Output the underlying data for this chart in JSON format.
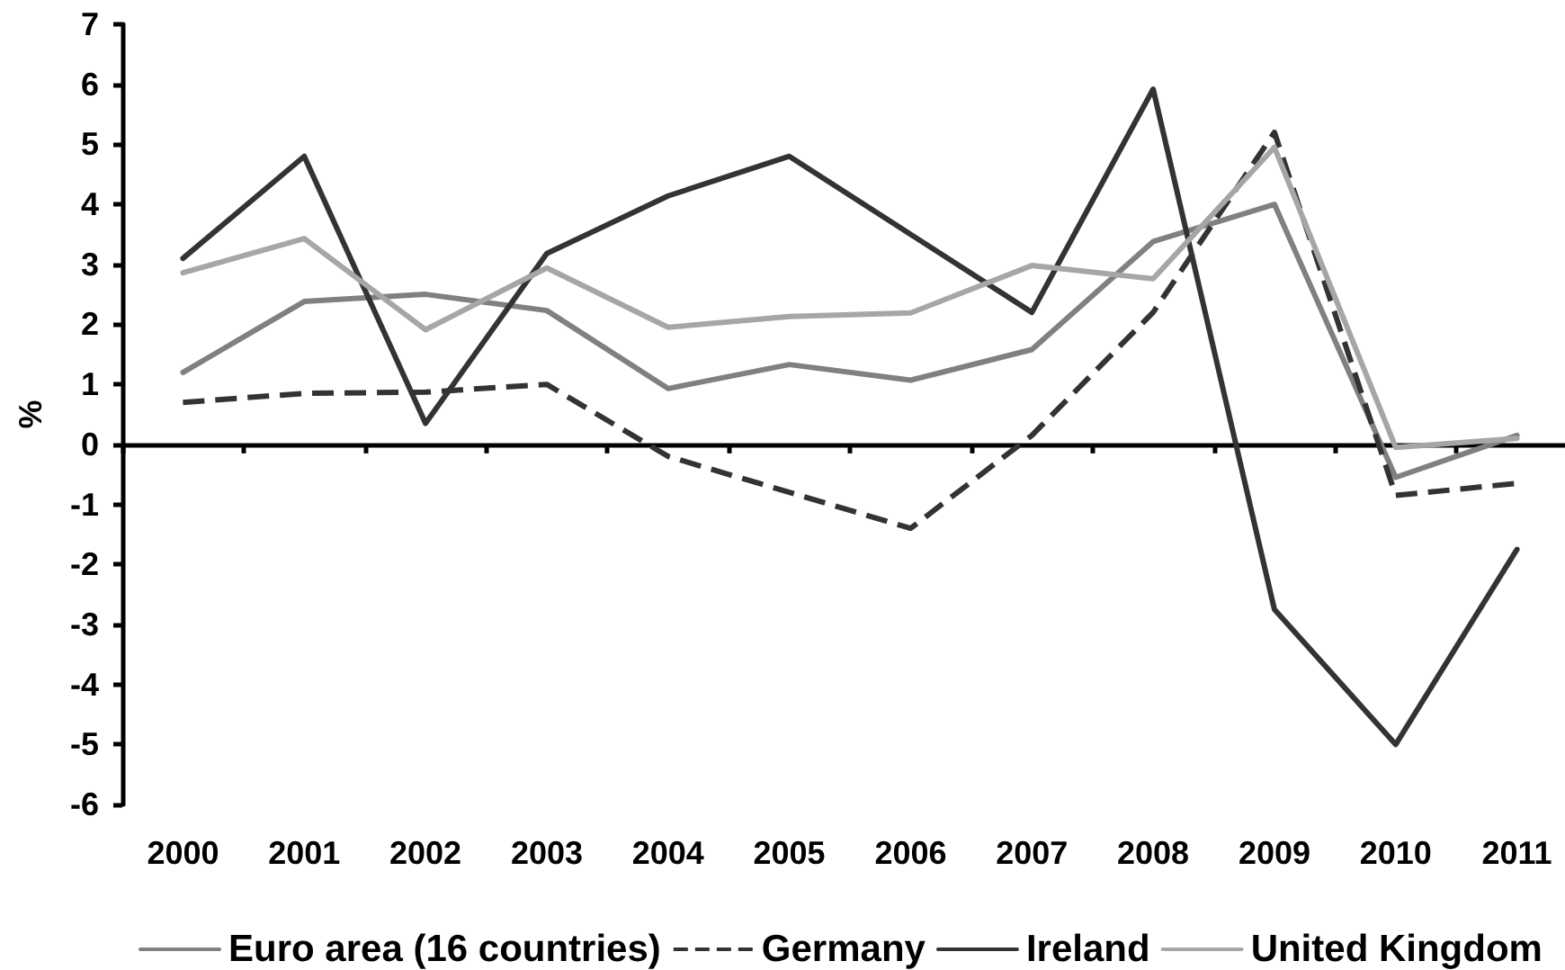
{
  "chart_data": {
    "type": "line",
    "categories": [
      "2000",
      "2001",
      "2002",
      "2003",
      "2004",
      "2005",
      "2006",
      "2007",
      "2008",
      "2009",
      "2010",
      "2011"
    ],
    "series": [
      {
        "name": "Euro area (16 countries)",
        "color": "#808080",
        "values": [
          1.2,
          2.38,
          2.5,
          2.23,
          0.93,
          1.33,
          1.07,
          1.58,
          3.38,
          4.0,
          -0.55,
          0.15
        ]
      },
      {
        "name": "Germany",
        "color": "#333333",
        "line_style": "dashed",
        "values": [
          0.7,
          0.85,
          0.87,
          1.0,
          -0.2,
          -0.8,
          -1.4,
          0.15,
          2.2,
          5.2,
          -0.85,
          -0.65
        ]
      },
      {
        "name": "Ireland",
        "color": "#333333",
        "values": [
          3.1,
          4.8,
          0.35,
          3.18,
          4.14,
          4.8,
          3.5,
          2.2,
          5.92,
          -2.75,
          -5.0,
          -1.75
        ]
      },
      {
        "name": "United Kingdom",
        "color": "#a6a6a6",
        "values": [
          2.86,
          3.43,
          1.91,
          2.94,
          1.95,
          2.13,
          2.19,
          2.98,
          2.76,
          4.95,
          -0.05,
          0.1
        ]
      }
    ],
    "ylabel": "%",
    "ylim": [
      -6,
      7
    ],
    "yticks": [
      -6,
      -5,
      -4,
      -3,
      -2,
      -1,
      0,
      1,
      2,
      3,
      4,
      5,
      6,
      7
    ],
    "line_style": "solid",
    "marker": "none",
    "legend": "bottom"
  }
}
